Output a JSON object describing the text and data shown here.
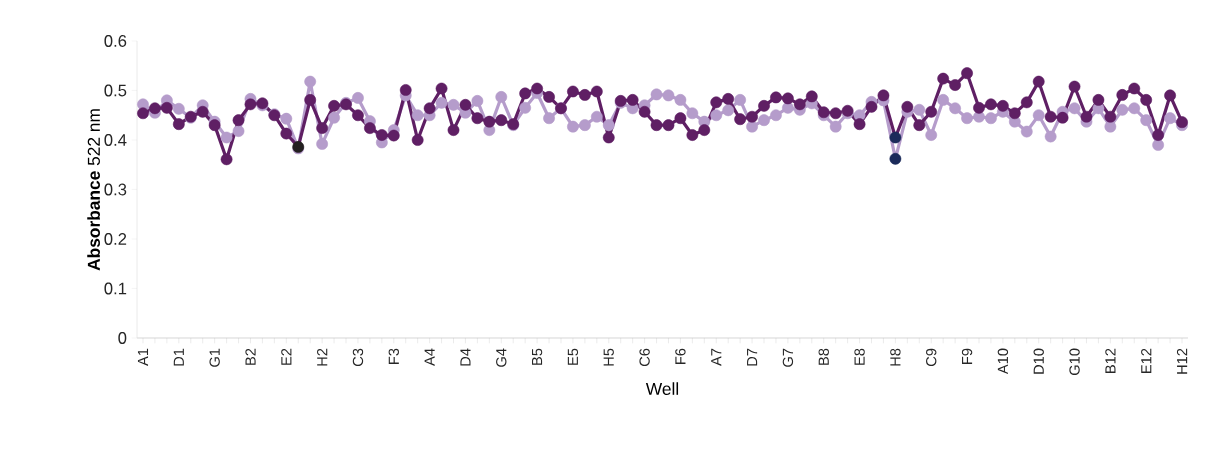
{
  "chart_data": {
    "type": "line",
    "xlabel": "Well",
    "ylabel": "**Absorbance** 522 nm",
    "categories": [
      "A1",
      null,
      null,
      "D1",
      null,
      null,
      "G1",
      null,
      null,
      "B2",
      null,
      null,
      "E2",
      null,
      null,
      "H2",
      null,
      null,
      "C3",
      null,
      null,
      "F3",
      null,
      null,
      "A4",
      null,
      null,
      "D4",
      null,
      null,
      "G4",
      null,
      null,
      "B5",
      null,
      null,
      "E5",
      null,
      null,
      "H5",
      null,
      null,
      "C6",
      null,
      null,
      "F6",
      null,
      null,
      "A7",
      null,
      null,
      "D7",
      null,
      null,
      "G7",
      null,
      null,
      "B8",
      null,
      null,
      "E8",
      null,
      null,
      "H8",
      null,
      null,
      "C9",
      null,
      null,
      "F9",
      null,
      null,
      "A10",
      null,
      null,
      "D10",
      null,
      null,
      "G10",
      null,
      null,
      "B12",
      null,
      null,
      "E12",
      null,
      null,
      "H12"
    ],
    "series": [
      {
        "color": "#b59ccb",
        "values": [
          0.472,
          0.455,
          0.48,
          0.463,
          0.445,
          0.47,
          0.437,
          0.405,
          0.418,
          0.483,
          0.47,
          0.452,
          0.443,
          0.383,
          0.518,
          0.392,
          0.445,
          0.475,
          0.485,
          0.438,
          0.395,
          0.42,
          0.49,
          0.45,
          0.45,
          0.475,
          0.471,
          0.455,
          0.479,
          0.42,
          0.487,
          0.43,
          0.465,
          0.495,
          0.444,
          0.464,
          0.427,
          0.43,
          0.447,
          0.43,
          0.475,
          0.464,
          0.47,
          0.492,
          0.49,
          0.481,
          0.454,
          0.437,
          0.45,
          0.46,
          0.481,
          0.427,
          0.44,
          0.45,
          0.465,
          0.461,
          0.474,
          0.45,
          0.427,
          0.454,
          0.45,
          0.477,
          0.48,
          0.362,
          0.457,
          0.461,
          0.41,
          0.481,
          0.464,
          0.444,
          0.447,
          0.444,
          0.457,
          0.437,
          0.417,
          0.45,
          0.407,
          0.457,
          0.464,
          0.437,
          0.464,
          0.427,
          0.461,
          0.464,
          0.44,
          0.39,
          0.444,
          0.43
        ],
        "colors": [
          "#b59ccb",
          "#b59ccb",
          "#b59ccb",
          "#b59ccb",
          "#b59ccb",
          "#b59ccb",
          "#b59ccb",
          "#b59ccb",
          "#b59ccb",
          "#b59ccb",
          "#b59ccb",
          "#b59ccb",
          "#b59ccb",
          "#b59ccb",
          "#b59ccb",
          "#b59ccb",
          "#b59ccb",
          "#b59ccb",
          "#b59ccb",
          "#b59ccb",
          "#b59ccb",
          "#b59ccb",
          "#b59ccb",
          "#b59ccb",
          "#b59ccb",
          "#b59ccb",
          "#b59ccb",
          "#b59ccb",
          "#b59ccb",
          "#b59ccb",
          "#b59ccb",
          "#b59ccb",
          "#b59ccb",
          "#b59ccb",
          "#b59ccb",
          "#b59ccb",
          "#b59ccb",
          "#b59ccb",
          "#b59ccb",
          "#b59ccb",
          "#b59ccb",
          "#b59ccb",
          "#b59ccb",
          "#b59ccb",
          "#b59ccb",
          "#b59ccb",
          "#b59ccb",
          "#b59ccb",
          "#b59ccb",
          "#b59ccb",
          "#b59ccb",
          "#b59ccb",
          "#b59ccb",
          "#b59ccb",
          "#b59ccb",
          "#b59ccb",
          "#b59ccb",
          "#b59ccb",
          "#b59ccb",
          "#b59ccb",
          "#b59ccb",
          "#b59ccb",
          "#b59ccb",
          "#1b2a5a",
          "#b59ccb",
          "#b59ccb",
          "#b59ccb",
          "#b59ccb",
          "#b59ccb",
          "#b59ccb",
          "#b59ccb",
          "#b59ccb",
          "#b59ccb",
          "#b59ccb",
          "#b59ccb",
          "#b59ccb",
          "#b59ccb",
          "#b59ccb",
          "#b59ccb",
          "#b59ccb",
          "#b59ccb",
          "#b59ccb",
          "#b59ccb",
          "#b59ccb",
          "#b59ccb",
          "#b59ccb",
          "#b59ccb",
          "#b59ccb"
        ]
      },
      {
        "color": "#5f1f64",
        "values": [
          0.454,
          0.464,
          0.465,
          0.432,
          0.447,
          0.457,
          0.43,
          0.361,
          0.44,
          0.472,
          0.474,
          0.45,
          0.413,
          0.386,
          0.481,
          0.424,
          0.469,
          0.472,
          0.45,
          0.424,
          0.41,
          0.409,
          0.501,
          0.4,
          0.464,
          0.504,
          0.42,
          0.471,
          0.444,
          0.437,
          0.44,
          0.432,
          0.494,
          0.504,
          0.487,
          0.464,
          0.498,
          0.491,
          0.498,
          0.405,
          0.479,
          0.481,
          0.457,
          0.43,
          0.43,
          0.444,
          0.41,
          0.42,
          0.476,
          0.483,
          0.442,
          0.447,
          0.469,
          0.486,
          0.484,
          0.472,
          0.488,
          0.456,
          0.454,
          0.459,
          0.432,
          0.467,
          0.49,
          0.405,
          0.467,
          0.43,
          0.457,
          0.524,
          0.511,
          0.535,
          0.465,
          0.472,
          0.469,
          0.454,
          0.476,
          0.518,
          0.447,
          0.445,
          0.508,
          0.447,
          0.481,
          0.447,
          0.491,
          0.504,
          0.481,
          0.41,
          0.49,
          0.436
        ],
        "colors": [
          "#5f1f64",
          "#5f1f64",
          "#5f1f64",
          "#5f1f64",
          "#5f1f64",
          "#5f1f64",
          "#5f1f64",
          "#5f1f64",
          "#5f1f64",
          "#5f1f64",
          "#5f1f64",
          "#5f1f64",
          "#5f1f64",
          "#231f20",
          "#5f1f64",
          "#5f1f64",
          "#5f1f64",
          "#5f1f64",
          "#5f1f64",
          "#5f1f64",
          "#5f1f64",
          "#5f1f64",
          "#5f1f64",
          "#5f1f64",
          "#5f1f64",
          "#5f1f64",
          "#5f1f64",
          "#5f1f64",
          "#5f1f64",
          "#5f1f64",
          "#5f1f64",
          "#5f1f64",
          "#5f1f64",
          "#5f1f64",
          "#5f1f64",
          "#5f1f64",
          "#5f1f64",
          "#5f1f64",
          "#5f1f64",
          "#5f1f64",
          "#5f1f64",
          "#5f1f64",
          "#5f1f64",
          "#5f1f64",
          "#5f1f64",
          "#5f1f64",
          "#5f1f64",
          "#5f1f64",
          "#5f1f64",
          "#5f1f64",
          "#5f1f64",
          "#5f1f64",
          "#5f1f64",
          "#5f1f64",
          "#5f1f64",
          "#5f1f64",
          "#5f1f64",
          "#5f1f64",
          "#5f1f64",
          "#5f1f64",
          "#5f1f64",
          "#5f1f64",
          "#5f1f64",
          "#1b2a5a",
          "#5f1f64",
          "#5f1f64",
          "#5f1f64",
          "#5f1f64",
          "#5f1f64",
          "#5f1f64",
          "#5f1f64",
          "#5f1f64",
          "#5f1f64",
          "#5f1f64",
          "#5f1f64",
          "#5f1f64",
          "#5f1f64",
          "#5f1f64",
          "#5f1f64",
          "#5f1f64",
          "#5f1f64",
          "#5f1f64",
          "#5f1f64",
          "#5f1f64",
          "#5f1f64",
          "#5f1f64",
          "#5f1f64",
          "#5f1f64"
        ]
      }
    ],
    "ylim": [
      0,
      0.6
    ],
    "yticks": [
      0,
      0.1,
      0.2,
      0.3,
      0.4,
      0.5,
      0.6
    ],
    "marker": "circle",
    "line_style": "solid"
  }
}
